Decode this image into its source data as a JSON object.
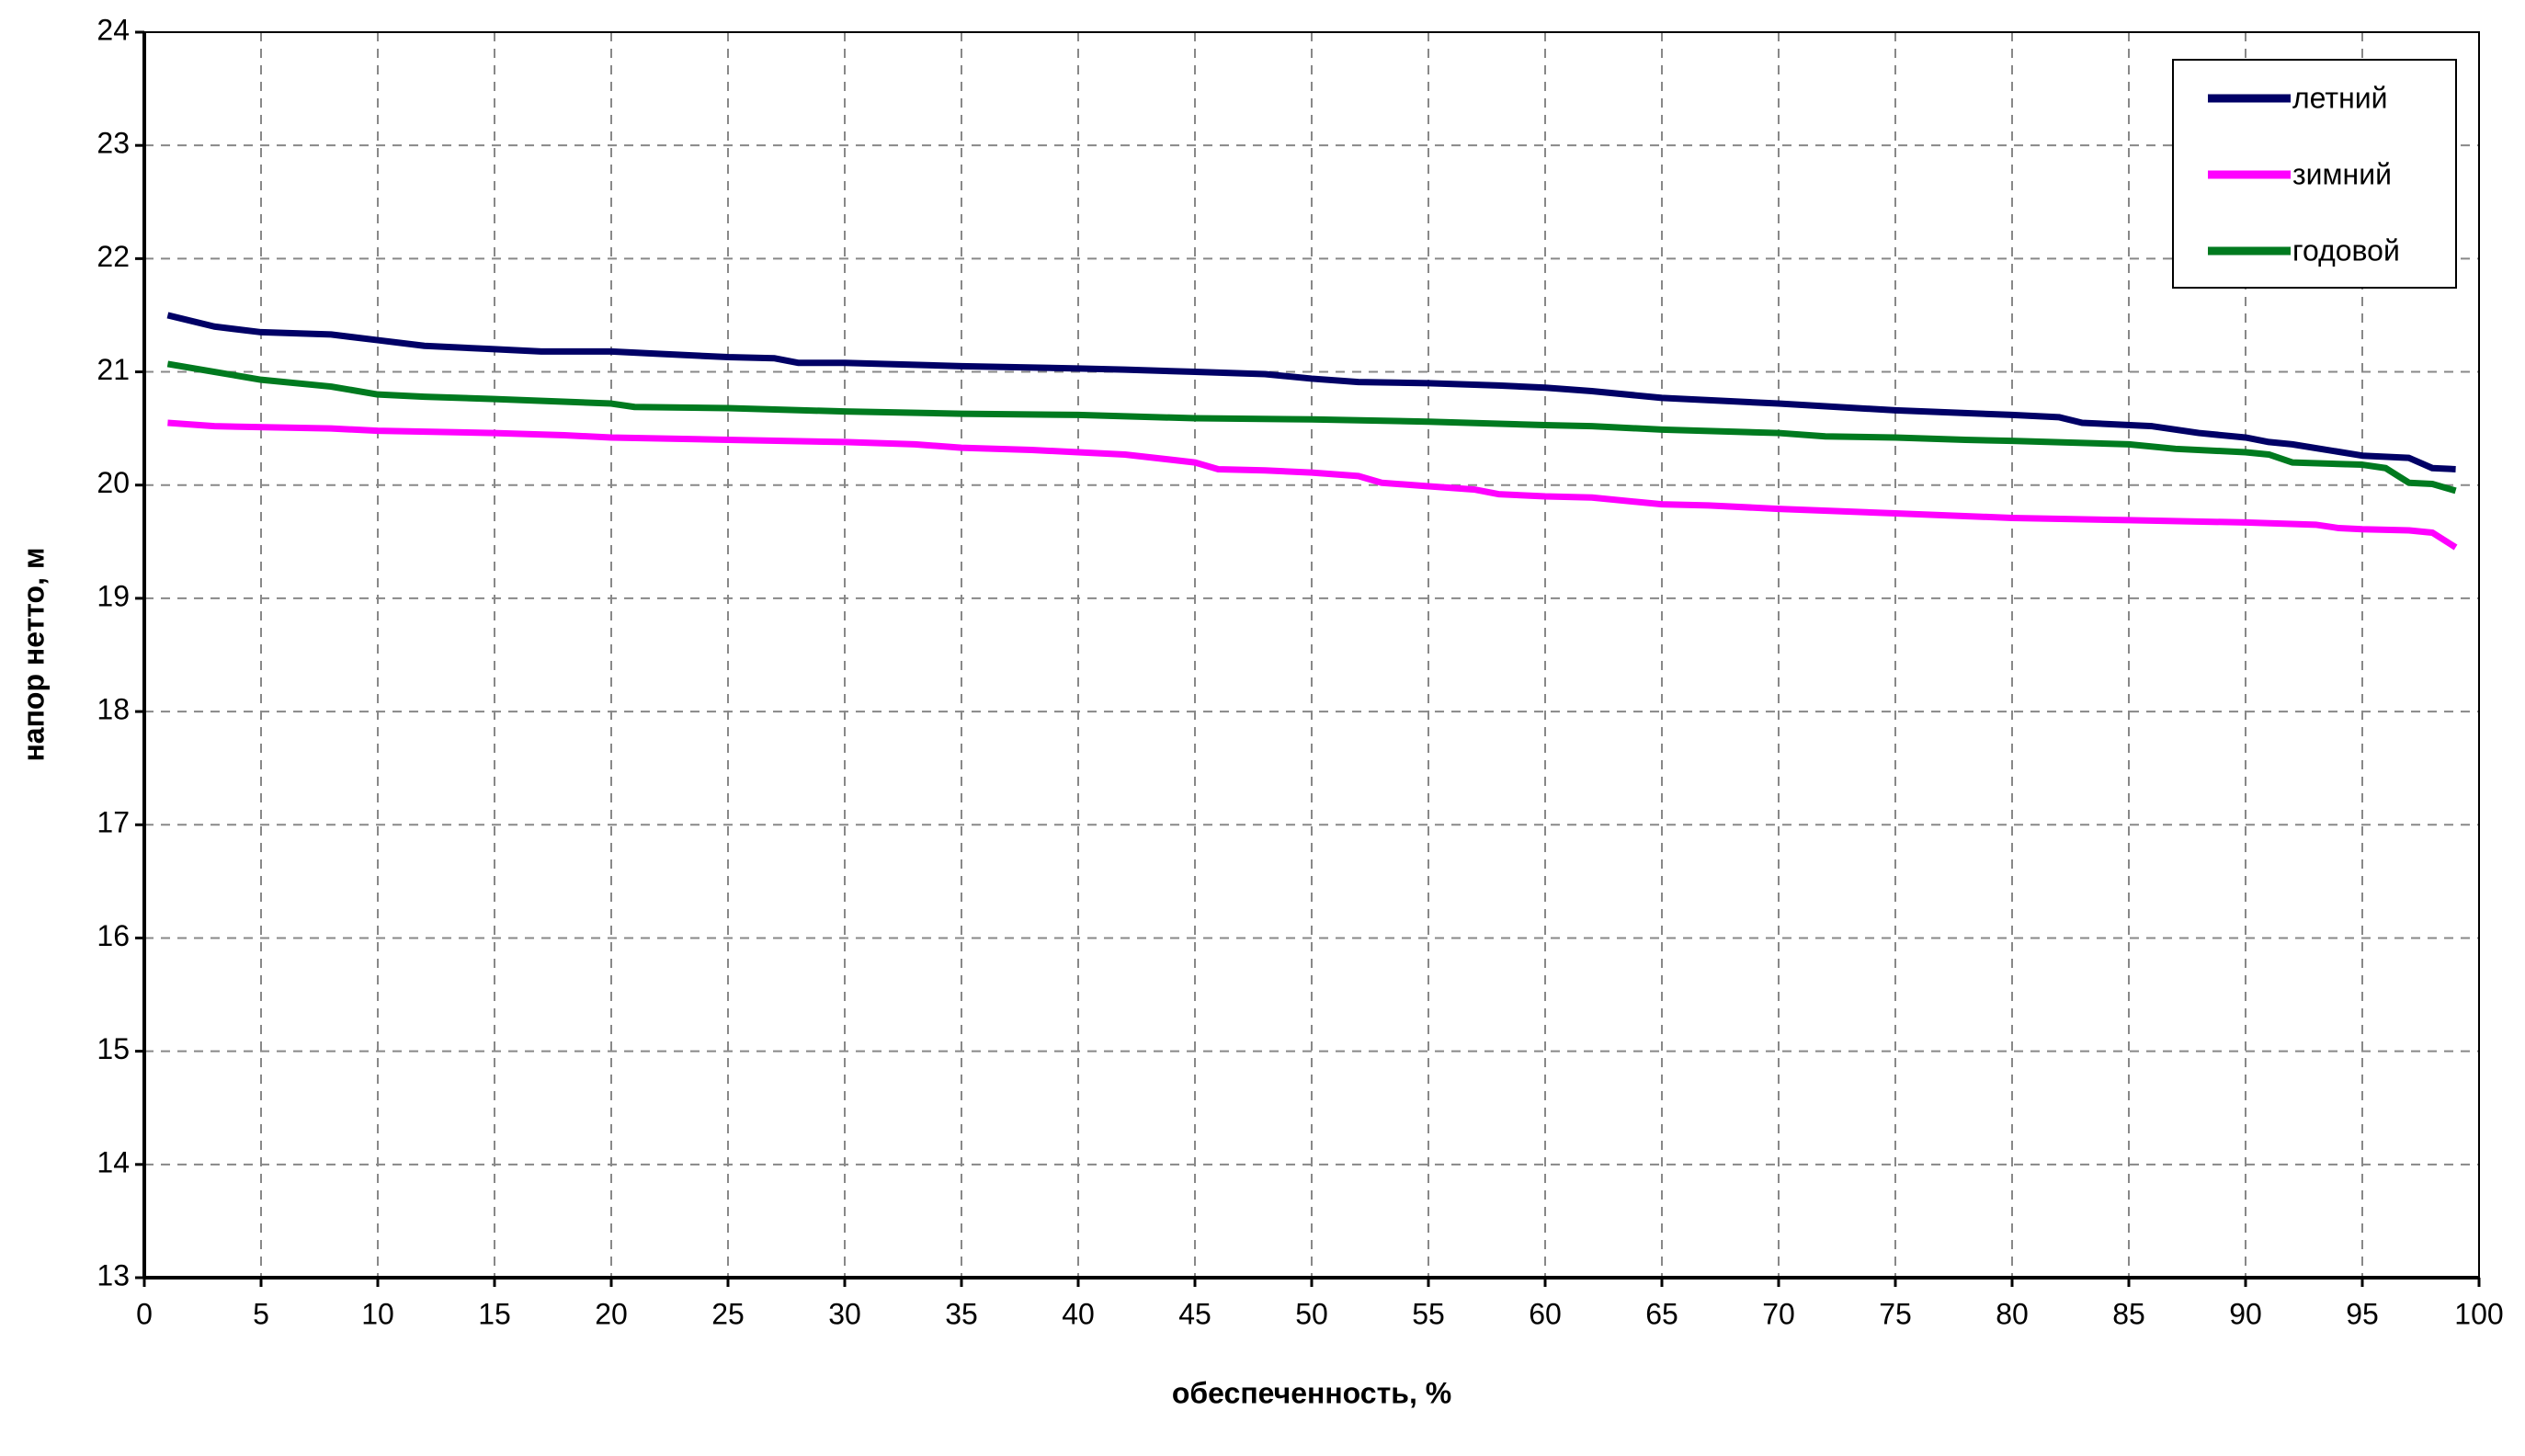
{
  "chart_data": {
    "type": "line",
    "x_label": "обеспеченность, %",
    "y_label": "напор нетто, м",
    "xlim": [
      0,
      100
    ],
    "xticks": [
      0,
      5,
      10,
      15,
      20,
      25,
      30,
      35,
      40,
      45,
      50,
      55,
      60,
      65,
      70,
      75,
      80,
      85,
      90,
      95,
      100
    ],
    "ylim": [
      13,
      24
    ],
    "yticks": [
      13,
      14,
      15,
      16,
      17,
      18,
      19,
      20,
      21,
      22,
      23,
      24
    ],
    "grid": true,
    "legend": "upper right",
    "series": [
      {
        "name": "летний",
        "color": "#000066",
        "x": [
          1,
          3,
          5,
          8,
          10,
          12,
          15,
          17,
          20,
          22,
          25,
          27,
          28,
          30,
          35,
          40,
          42,
          45,
          48,
          50,
          52,
          55,
          58,
          60,
          62,
          65,
          70,
          75,
          80,
          82,
          83,
          86,
          88,
          90,
          91,
          92,
          95,
          97,
          98,
          99
        ],
        "values": [
          21.5,
          21.4,
          21.35,
          21.33,
          21.28,
          21.23,
          21.2,
          21.18,
          21.18,
          21.16,
          21.13,
          21.12,
          21.08,
          21.08,
          21.05,
          21.03,
          21.02,
          21.0,
          20.98,
          20.94,
          20.91,
          20.9,
          20.88,
          20.86,
          20.83,
          20.77,
          20.72,
          20.66,
          20.62,
          20.6,
          20.55,
          20.52,
          20.46,
          20.42,
          20.38,
          20.36,
          20.26,
          20.24,
          20.15,
          20.14
        ]
      },
      {
        "name": "зимний",
        "color": "#ff00ff",
        "x": [
          1,
          3,
          8,
          10,
          15,
          18,
          20,
          25,
          30,
          33,
          35,
          38,
          40,
          42,
          45,
          46,
          48,
          50,
          52,
          53,
          55,
          57,
          58,
          60,
          62,
          65,
          67,
          70,
          75,
          80,
          85,
          90,
          93,
          94,
          95,
          97,
          98,
          99
        ],
        "values": [
          20.55,
          20.52,
          20.5,
          20.48,
          20.46,
          20.44,
          20.42,
          20.4,
          20.38,
          20.36,
          20.33,
          20.31,
          20.29,
          20.27,
          20.2,
          20.14,
          20.13,
          20.11,
          20.08,
          20.02,
          19.99,
          19.96,
          19.92,
          19.9,
          19.89,
          19.83,
          19.82,
          19.79,
          19.75,
          19.71,
          19.69,
          19.67,
          19.65,
          19.62,
          19.61,
          19.6,
          19.58,
          19.45
        ]
      },
      {
        "name": "годовой",
        "color": "#007a1f",
        "x": [
          1,
          3,
          5,
          8,
          10,
          12,
          15,
          20,
          21,
          25,
          30,
          35,
          40,
          45,
          50,
          55,
          60,
          62,
          65,
          70,
          72,
          75,
          78,
          80,
          85,
          87,
          90,
          91,
          92,
          95,
          96,
          97,
          98,
          99
        ],
        "values": [
          21.07,
          21.0,
          20.93,
          20.87,
          20.8,
          20.78,
          20.76,
          20.72,
          20.69,
          20.68,
          20.65,
          20.63,
          20.62,
          20.59,
          20.58,
          20.56,
          20.53,
          20.52,
          20.49,
          20.46,
          20.43,
          20.42,
          20.4,
          20.39,
          20.36,
          20.32,
          20.29,
          20.27,
          20.2,
          20.18,
          20.15,
          20.02,
          20.01,
          19.95
        ]
      }
    ]
  }
}
